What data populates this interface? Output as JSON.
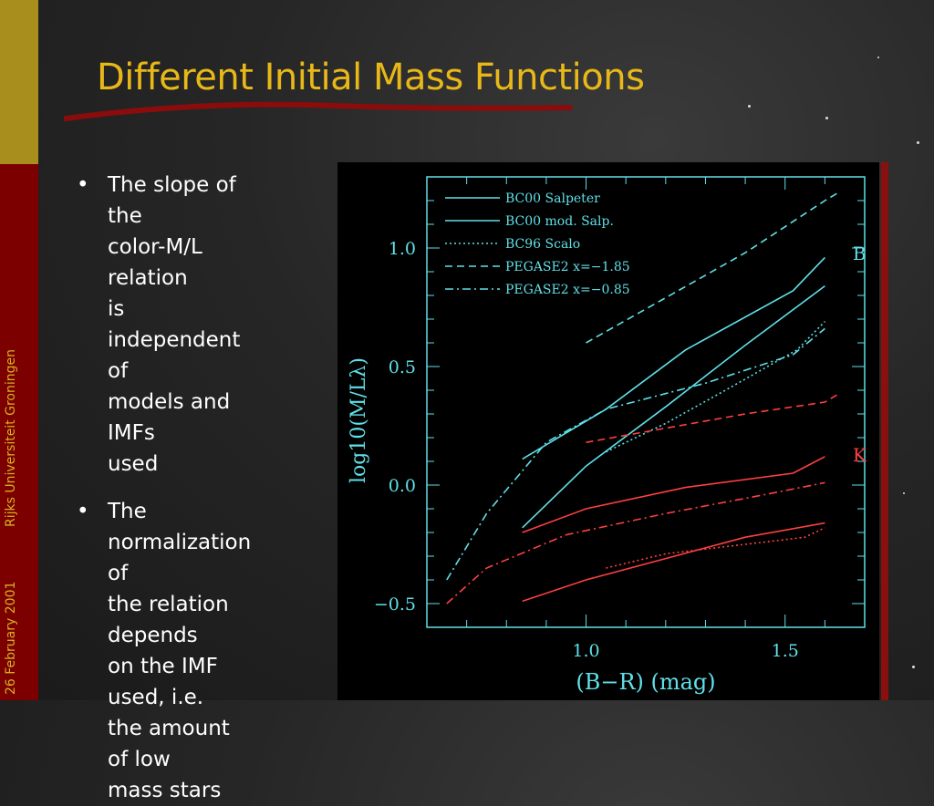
{
  "slide": {
    "title": "Different Initial Mass Functions",
    "sidebar_date": "26 February 2001",
    "sidebar_org": "Rijks Universiteit Groningen"
  },
  "bullets": [
    {
      "marker": "•",
      "lines": [
        "The slope of the",
        "color-M/L relation",
        "is independent of",
        "models and IMFs",
        "used"
      ]
    },
    {
      "marker": "•",
      "lines": [
        "The normalization of",
        "the relation depends",
        "on the IMF used, i.e.",
        "the amount of low",
        "mass stars"
      ]
    }
  ],
  "chart_data": {
    "type": "line",
    "xlabel": "(B−R) (mag)",
    "ylabel": "log10(M/Lλ)",
    "xlim": [
      0.6,
      1.7
    ],
    "ylim": [
      -0.6,
      1.3
    ],
    "xticks": [
      {
        "v": 1.0,
        "label": "1.0"
      },
      {
        "v": 1.5,
        "label": "1.5"
      }
    ],
    "yticks": [
      {
        "v": 1.0,
        "label": "1.0"
      },
      {
        "v": 0.5,
        "label": "0.5"
      },
      {
        "v": 0.0,
        "label": "0.0"
      },
      {
        "v": -0.5,
        "label": "−0.5"
      }
    ],
    "band_labels": [
      {
        "text": "B",
        "color": "#5fe0e8"
      },
      {
        "text": "K",
        "color": "#ff4040"
      }
    ],
    "legend": [
      {
        "name": "BC00 Salpeter",
        "dash": "solid"
      },
      {
        "name": "BC00 mod. Salp.",
        "dash": "solid"
      },
      {
        "name": "BC96 Scalo",
        "dash": "dotted"
      },
      {
        "name": "PEGASE2 x=−1.85",
        "dash": "dashed"
      },
      {
        "name": "PEGASE2 x=−0.85",
        "dash": "dashdot"
      }
    ],
    "series": [
      {
        "band": "B",
        "model": "BC00 Salpeter",
        "dash": "solid",
        "color": "#5fe0e8",
        "x": [
          0.84,
          0.95,
          1.05,
          1.25,
          1.52,
          1.6
        ],
        "y": [
          0.11,
          0.22,
          0.32,
          0.57,
          0.82,
          0.96
        ]
      },
      {
        "band": "B",
        "model": "BC00 mod. Salp.",
        "dash": "solid",
        "color": "#5fe0e8",
        "x": [
          0.84,
          1.0,
          1.2,
          1.4,
          1.6
        ],
        "y": [
          -0.18,
          0.08,
          0.33,
          0.59,
          0.84
        ]
      },
      {
        "band": "B",
        "model": "BC96 Scalo",
        "dash": "dotted",
        "color": "#5fe0e8",
        "x": [
          1.05,
          1.2,
          1.35,
          1.53,
          1.6
        ],
        "y": [
          0.14,
          0.26,
          0.4,
          0.57,
          0.69
        ]
      },
      {
        "band": "B",
        "model": "PEGASE2 x=−1.85",
        "dash": "dashed",
        "color": "#5fe0e8",
        "x": [
          1.0,
          1.2,
          1.4,
          1.6,
          1.63
        ],
        "y": [
          0.6,
          0.79,
          0.98,
          1.2,
          1.23
        ]
      },
      {
        "band": "B",
        "model": "PEGASE2 x=−0.85",
        "dash": "dashdot",
        "color": "#5fe0e8",
        "x": [
          0.65,
          0.75,
          0.9,
          1.05,
          1.3,
          1.52,
          1.6
        ],
        "y": [
          -0.4,
          -0.12,
          0.18,
          0.32,
          0.43,
          0.55,
          0.66
        ]
      },
      {
        "band": "K",
        "model": "BC00 Salpeter",
        "dash": "solid",
        "color": "#ff4040",
        "x": [
          0.84,
          1.0,
          1.25,
          1.52,
          1.6
        ],
        "y": [
          -0.2,
          -0.1,
          -0.01,
          0.05,
          0.12
        ]
      },
      {
        "band": "K",
        "model": "BC00 mod. Salp.",
        "dash": "solid",
        "color": "#ff4040",
        "x": [
          0.84,
          1.0,
          1.2,
          1.4,
          1.6
        ],
        "y": [
          -0.49,
          -0.4,
          -0.31,
          -0.22,
          -0.16
        ]
      },
      {
        "band": "K",
        "model": "BC96 Scalo",
        "dash": "dotted",
        "color": "#ff4040",
        "x": [
          1.05,
          1.2,
          1.4,
          1.55,
          1.6
        ],
        "y": [
          -0.35,
          -0.29,
          -0.25,
          -0.22,
          -0.18
        ]
      },
      {
        "band": "K",
        "model": "PEGASE2 x=−1.85",
        "dash": "dashed",
        "color": "#ff4040",
        "x": [
          1.0,
          1.2,
          1.4,
          1.6,
          1.63
        ],
        "y": [
          0.18,
          0.24,
          0.3,
          0.35,
          0.38
        ]
      },
      {
        "band": "K",
        "model": "PEGASE2 x=−0.85",
        "dash": "dashdot",
        "color": "#ff4040",
        "x": [
          0.65,
          0.75,
          0.95,
          1.2,
          1.45,
          1.6
        ],
        "y": [
          -0.5,
          -0.35,
          -0.21,
          -0.12,
          -0.04,
          0.01
        ]
      }
    ]
  }
}
